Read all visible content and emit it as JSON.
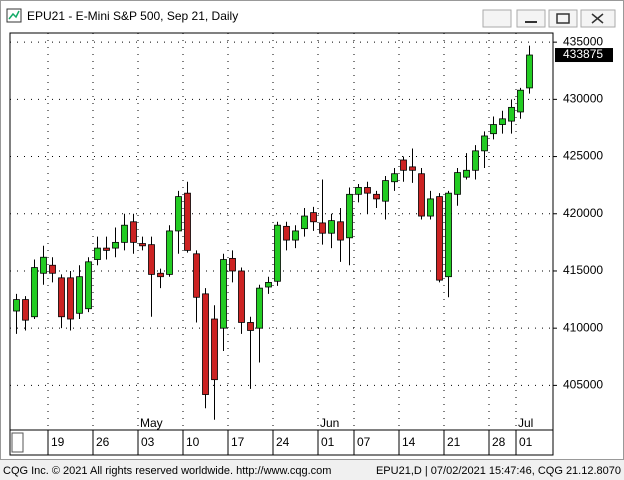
{
  "chart_data": {
    "type": "candlestick",
    "title": "EPU21 - E-Mini S&P 500, Sep 21, Daily",
    "open": [
      411500,
      412500,
      411000,
      414800,
      415500,
      414400,
      414400,
      411300,
      411700,
      416000,
      417000,
      417000,
      417500,
      419300,
      417400,
      417300,
      414800,
      414700,
      418500,
      421800,
      416500,
      413000,
      410800,
      410000,
      416100,
      415000,
      410500,
      410000,
      413600,
      414100,
      418900,
      417700,
      418700,
      420100,
      419200,
      418300,
      419300,
      417900,
      421700,
      422300,
      421700,
      421100,
      422800,
      424700,
      424100,
      423500,
      419800,
      421500,
      414500,
      421700,
      423200,
      423800,
      425500,
      427000,
      427800,
      428100,
      428900,
      431000
    ],
    "high": [
      413000,
      412800,
      416000,
      417200,
      416200,
      414700,
      415000,
      415500,
      416200,
      418000,
      418000,
      418800,
      420000,
      420000,
      418000,
      418000,
      415200,
      419000,
      422000,
      422800,
      416800,
      413500,
      412000,
      416500,
      416800,
      415300,
      411000,
      413800,
      414500,
      419300,
      419300,
      419000,
      420500,
      420600,
      423000,
      420000,
      420500,
      422300,
      422600,
      422800,
      422000,
      423300,
      424000,
      425000,
      425700,
      424000,
      422000,
      421800,
      422000,
      424000,
      425300,
      426000,
      427200,
      428500,
      429000,
      430000,
      431000,
      434700
    ],
    "low": [
      409500,
      409800,
      410800,
      413800,
      414000,
      410000,
      409800,
      410800,
      411400,
      415500,
      416000,
      416200,
      416800,
      416500,
      416800,
      411000,
      413500,
      414500,
      416500,
      416600,
      410500,
      403000,
      402000,
      408000,
      414000,
      409500,
      404700,
      407000,
      413000,
      413700,
      416800,
      417000,
      418000,
      418500,
      417300,
      417000,
      415800,
      415500,
      421000,
      420000,
      420500,
      419500,
      422000,
      422800,
      422700,
      419500,
      419500,
      414000,
      412700,
      420700,
      423000,
      423000,
      424000,
      426500,
      427000,
      427000,
      428300,
      430500
    ],
    "close": [
      412500,
      410700,
      415300,
      416200,
      414800,
      411000,
      410800,
      414500,
      415800,
      417000,
      416800,
      417500,
      419000,
      417500,
      417200,
      414700,
      414500,
      418500,
      421500,
      416800,
      412700,
      404200,
      405500,
      416000,
      415000,
      410500,
      409800,
      413500,
      414000,
      419000,
      417700,
      418500,
      419800,
      419300,
      418300,
      419400,
      417700,
      421700,
      422300,
      421800,
      421300,
      422900,
      423500,
      423800,
      423800,
      419800,
      421300,
      414200,
      421800,
      423600,
      423800,
      425500,
      426800,
      427800,
      428300,
      429300,
      430800,
      433875
    ],
    "up_color": "#22cc22",
    "down_color": "#cc2222",
    "ylim": [
      401100,
      435800
    ],
    "yticks": [
      405000,
      410000,
      415000,
      420000,
      425000,
      430000,
      435000
    ],
    "xticks": [
      {
        "value": 4,
        "label": "19"
      },
      {
        "value": 9,
        "label": "26"
      },
      {
        "value": 14,
        "label": "03"
      },
      {
        "value": 19,
        "label": "10"
      },
      {
        "value": 24,
        "label": "17"
      },
      {
        "value": 29,
        "label": "24"
      },
      {
        "value": 34,
        "label": "01"
      },
      {
        "value": 38,
        "label": "07"
      },
      {
        "value": 43,
        "label": "14"
      },
      {
        "value": 48,
        "label": "21"
      },
      {
        "value": 53,
        "label": "28"
      },
      {
        "value": 56,
        "label": "01"
      }
    ],
    "month_ticks": [
      {
        "value": 14,
        "label": "May"
      },
      {
        "value": 34,
        "label": "Jun"
      },
      {
        "value": 56,
        "label": "Jul"
      }
    ],
    "last_price": 433875,
    "grid": true,
    "footer_left": "CQG Inc. © 2021 All rights reserved worldwide. http://www.cqg.com",
    "footer_right": "EPU21,D | 07/02/2021 15:47:46, CQG 21.12.8070"
  }
}
